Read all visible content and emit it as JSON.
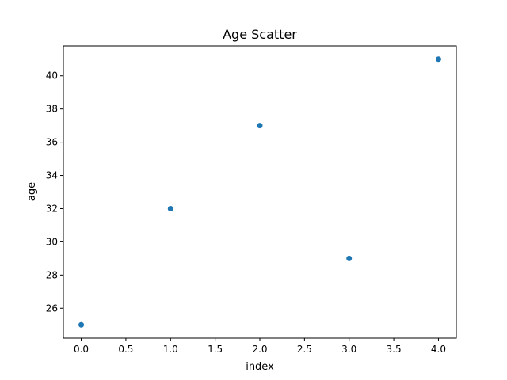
{
  "chart_data": {
    "type": "scatter",
    "title": "Age Scatter",
    "xlabel": "index",
    "ylabel": "age",
    "x": [
      0,
      1,
      2,
      3,
      4
    ],
    "y": [
      25,
      32,
      37,
      29,
      41
    ],
    "xlim": [
      -0.2,
      4.2
    ],
    "ylim": [
      24.2,
      41.8
    ],
    "xticks": [
      0.0,
      0.5,
      1.0,
      1.5,
      2.0,
      2.5,
      3.0,
      3.5,
      4.0
    ],
    "xtick_labels": [
      "0.0",
      "0.5",
      "1.0",
      "1.5",
      "2.0",
      "2.5",
      "3.0",
      "3.5",
      "4.0"
    ],
    "yticks": [
      26,
      28,
      30,
      32,
      34,
      36,
      38,
      40
    ],
    "ytick_labels": [
      "26",
      "28",
      "30",
      "32",
      "34",
      "36",
      "38",
      "40"
    ],
    "grid": false,
    "legend": "none",
    "marker_color": "#1f77b4"
  }
}
